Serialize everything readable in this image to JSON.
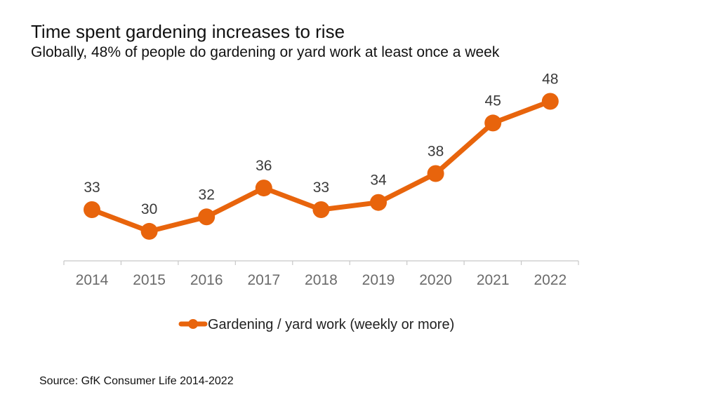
{
  "header": {
    "title": "Time spent gardening increases to rise",
    "subtitle": "Globally, 48% of people do gardening or yard work at least once a week"
  },
  "footer": {
    "source": "Source: GfK Consumer Life 2014-2022"
  },
  "colors": {
    "series": "#E8640C",
    "axis": "#c8c8c8",
    "tick_text": "#6b6b6b"
  },
  "chart_data": {
    "type": "line",
    "title": "Time spent gardening increases to rise",
    "subtitle": "Globally, 48% of people do gardening or yard work at least once a week",
    "categories": [
      "2014",
      "2015",
      "2016",
      "2017",
      "2018",
      "2019",
      "2020",
      "2021",
      "2022"
    ],
    "series": [
      {
        "name": "Gardening / yard work (weekly or more)",
        "values": [
          33,
          30,
          32,
          36,
          33,
          34,
          38,
          45,
          48
        ],
        "data_labels": [
          "33",
          "30",
          "32",
          "36",
          "33",
          "34",
          "38",
          "45",
          "48"
        ]
      }
    ],
    "xlabel": "",
    "ylabel": "",
    "y_axis_visible": false,
    "grid": false,
    "legend_position": "bottom",
    "markers": true
  }
}
